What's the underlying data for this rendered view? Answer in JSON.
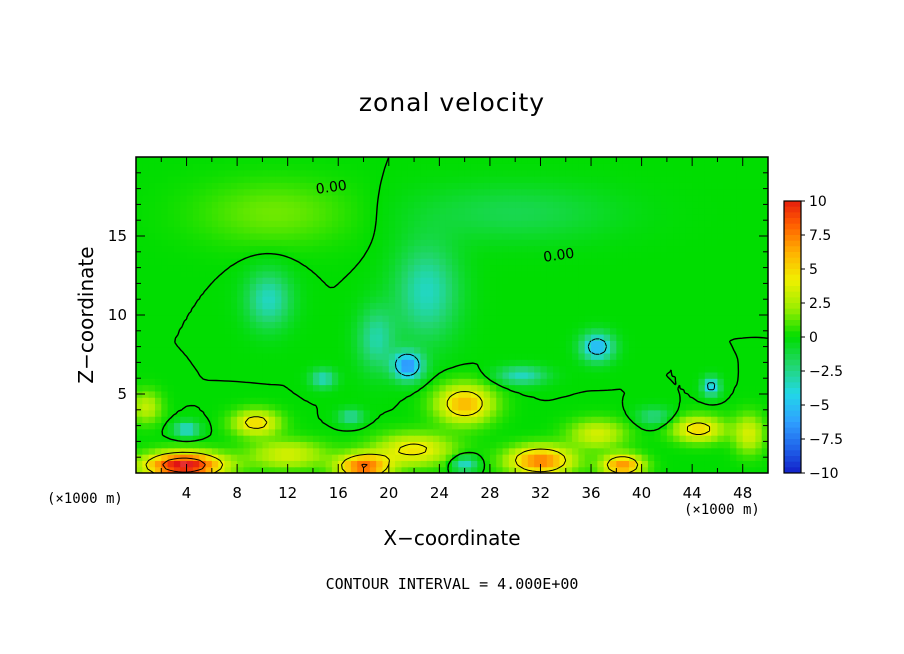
{
  "colors": {
    "palette": [
      "#7b1fa2",
      "#1010c0",
      "#1e5ee8",
      "#2fa0ff",
      "#22d8e8",
      "#22d66e",
      "#00dd00",
      "#9aee00",
      "#f0f000",
      "#ffb000",
      "#ff5a00",
      "#e01010",
      "#ffb4b4"
    ],
    "contour_line": "#000000"
  },
  "chart_data": {
    "type": "heatmap",
    "title": "zonal velocity",
    "xlabel": "X−coordinate",
    "ylabel": "Z−coordinate",
    "x_unit_label": "(×1000 m)",
    "xlim": [
      0,
      50
    ],
    "ylim": [
      0,
      20
    ],
    "x_ticks": [
      4,
      8,
      12,
      16,
      20,
      24,
      28,
      32,
      36,
      40,
      44,
      48
    ],
    "x_tick_labels": [
      "4",
      "8",
      "12",
      "16",
      "20",
      "24",
      "28",
      "32",
      "36",
      "40",
      "44",
      "48"
    ],
    "y_ticks": [
      5,
      10,
      15
    ],
    "y_tick_labels": [
      "5",
      "10",
      "15"
    ],
    "colorbar": {
      "levels": [
        10,
        7.5,
        5,
        2.5,
        0,
        -2.5,
        -5,
        -7.5,
        -10
      ],
      "labels": [
        "10",
        "7.5",
        "5",
        "2.5",
        "0",
        "−2.5",
        "−5",
        "−7.5",
        "−10"
      ]
    },
    "contour_labels": [
      {
        "text": "0.00",
        "x": 15.5,
        "y": 17.8
      },
      {
        "text": "0.00",
        "x": 33.5,
        "y": 13.5
      }
    ],
    "contour_interval_text": "CONTOUR INTERVAL = 4.000E+00",
    "background_value": 0,
    "features": [
      {
        "x": 3.8,
        "z": 0.5,
        "value": 11,
        "sx": 3.0,
        "sz": 0.8
      },
      {
        "x": 18.0,
        "z": 0.4,
        "value": 8,
        "sx": 2.0,
        "sz": 0.8
      },
      {
        "x": 32.0,
        "z": 0.8,
        "value": 7.5,
        "sx": 2.5,
        "sz": 0.9
      },
      {
        "x": 38.5,
        "z": 0.5,
        "value": 7,
        "sx": 1.6,
        "sz": 0.7
      },
      {
        "x": 26.0,
        "z": 4.4,
        "value": 6,
        "sx": 2.2,
        "sz": 1.2
      },
      {
        "x": 44.5,
        "z": 2.8,
        "value": 5,
        "sx": 2.0,
        "sz": 0.8
      },
      {
        "x": 9.5,
        "z": 3.2,
        "value": 5,
        "sx": 1.8,
        "sz": 0.8
      },
      {
        "x": 22.0,
        "z": 1.5,
        "value": 4.5,
        "sx": 3.0,
        "sz": 1.0
      },
      {
        "x": 12.0,
        "z": 1.2,
        "value": 3.5,
        "sx": 3.0,
        "sz": 0.9
      },
      {
        "x": 36.5,
        "z": 2.5,
        "value": 3.5,
        "sx": 2.2,
        "sz": 0.9
      },
      {
        "x": 48.5,
        "z": 2.5,
        "value": 3.5,
        "sx": 1.2,
        "sz": 1.2
      },
      {
        "x": 0.8,
        "z": 4.2,
        "value": 3,
        "sx": 1.2,
        "sz": 1.0
      },
      {
        "x": 21.5,
        "z": 6.8,
        "value": -6.5,
        "sx": 1.2,
        "sz": 0.9
      },
      {
        "x": 36.5,
        "z": 8.0,
        "value": -5.5,
        "sx": 1.3,
        "sz": 0.9
      },
      {
        "x": 45.5,
        "z": 5.5,
        "value": -5,
        "sx": 0.7,
        "sz": 0.6
      },
      {
        "x": 4.0,
        "z": 2.8,
        "value": -4,
        "sx": 1.0,
        "sz": 0.5
      },
      {
        "x": 30.5,
        "z": 6.2,
        "value": -3.5,
        "sx": 2.0,
        "sz": 0.6
      },
      {
        "x": 26.0,
        "z": 0.6,
        "value": -4,
        "sx": 1.0,
        "sz": 0.5
      },
      {
        "x": 14.8,
        "z": 6.0,
        "value": -3.5,
        "sx": 1.0,
        "sz": 0.6
      },
      {
        "x": 10.5,
        "z": 11.0,
        "value": -3.5,
        "sx": 1.8,
        "sz": 1.8
      },
      {
        "x": 23.0,
        "z": 11.5,
        "value": -3.5,
        "sx": 2.5,
        "sz": 3.0
      },
      {
        "x": 19.0,
        "z": 8.5,
        "value": -3,
        "sx": 1.5,
        "sz": 2.0
      },
      {
        "x": 17.0,
        "z": 3.6,
        "value": -3,
        "sx": 1.0,
        "sz": 0.5
      },
      {
        "x": 41.0,
        "z": 3.6,
        "value": -2.5,
        "sx": 1.4,
        "sz": 0.6
      },
      {
        "x": 30.0,
        "z": 16.5,
        "value": -1.5,
        "sx": 8.0,
        "sz": 1.8
      },
      {
        "x": 11.0,
        "z": 16.5,
        "value": 1.5,
        "sx": 6.0,
        "sz": 2.0
      }
    ]
  }
}
